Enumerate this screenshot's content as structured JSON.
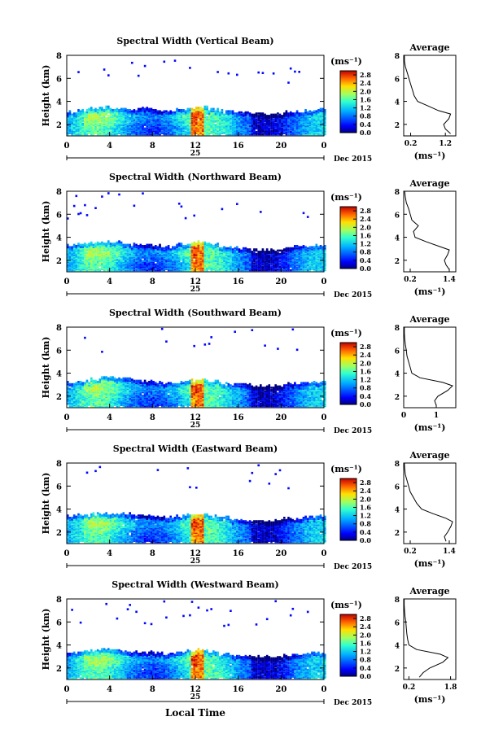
{
  "figure": {
    "xlabel": "Local Time",
    "month_label": "Dec 2015",
    "day_label": "25",
    "unit_label": "(ms⁻¹)"
  },
  "chart_data": [
    {
      "type": "heatmap",
      "title": "Spectral Width (Vertical Beam)",
      "ylabel": "Height (km)",
      "x_ticks": [
        "0",
        "4",
        "8",
        "12",
        "16",
        "20",
        "0"
      ],
      "y_ticks": [
        "2",
        "4",
        "6",
        "8"
      ],
      "xlim": [
        0,
        24
      ],
      "ylim": [
        1,
        8
      ],
      "colorbar_ticks": [
        "0.0",
        "0.4",
        "0.8",
        "1.2",
        "1.6",
        "2.0",
        "2.4",
        "2.8"
      ],
      "colorbar_range": [
        0,
        3.0
      ],
      "echo_top_km": [
        3.0,
        3.2,
        3.3,
        3.4,
        3.3,
        3.2,
        3.2,
        3.3,
        3.1,
        3.0,
        3.2,
        3.3,
        3.4,
        3.2,
        3.1,
        3.0,
        2.9,
        2.9,
        2.8,
        2.8,
        3.0,
        3.0,
        3.1,
        3.2
      ],
      "average_profile": {
        "title": "Average",
        "xlabel": "(ms⁻¹)",
        "x_ticks": [
          "0.2",
          "1.2"
        ],
        "xlim": [
          0,
          1.5
        ],
        "y_ticks": [
          "2",
          "4",
          "6",
          "8"
        ],
        "ylim": [
          1,
          8
        ],
        "height_km": [
          1.2,
          1.6,
          2.0,
          2.5,
          2.9,
          3.2,
          3.6,
          4.0,
          4.5,
          5.0,
          5.5,
          6.0,
          6.5,
          7.0,
          7.5,
          8.0
        ],
        "width_ms": [
          1.35,
          1.2,
          1.15,
          1.3,
          1.35,
          1.0,
          0.7,
          0.4,
          0.3,
          0.25,
          0.2,
          0.15,
          0.1,
          0.05,
          0.02,
          0.02
        ]
      }
    },
    {
      "type": "heatmap",
      "title": "Spectral Width (Northward Beam)",
      "ylabel": "Height (km)",
      "x_ticks": [
        "0",
        "4",
        "8",
        "12",
        "16",
        "20",
        "0"
      ],
      "y_ticks": [
        "2",
        "4",
        "6",
        "8"
      ],
      "xlim": [
        0,
        24
      ],
      "ylim": [
        1,
        8
      ],
      "colorbar_ticks": [
        "0.0",
        "0.4",
        "0.8",
        "1.2",
        "1.6",
        "2.0",
        "2.4",
        "2.8"
      ],
      "colorbar_range": [
        0,
        3.0
      ],
      "echo_top_km": [
        3.2,
        3.3,
        3.4,
        3.5,
        3.5,
        3.4,
        3.3,
        3.3,
        3.2,
        3.1,
        3.3,
        3.4,
        3.5,
        3.3,
        3.1,
        3.0,
        2.9,
        2.8,
        2.8,
        2.8,
        3.0,
        3.1,
        3.1,
        3.2
      ],
      "average_profile": {
        "title": "Average",
        "xlabel": "(ms⁻¹)",
        "x_ticks": [
          "0.2",
          "1.4"
        ],
        "xlim": [
          0,
          1.6
        ],
        "y_ticks": [
          "2",
          "4",
          "6",
          "8"
        ],
        "ylim": [
          1,
          8
        ],
        "height_km": [
          1.2,
          1.6,
          2.0,
          2.5,
          2.9,
          3.2,
          3.6,
          4.0,
          4.5,
          5.0,
          5.5,
          6.0,
          6.5,
          7.0,
          7.5,
          8.0
        ],
        "width_ms": [
          1.4,
          1.3,
          1.25,
          1.35,
          1.4,
          1.1,
          0.7,
          0.35,
          0.3,
          0.45,
          0.25,
          0.2,
          0.15,
          0.08,
          0.05,
          0.03
        ]
      }
    },
    {
      "type": "heatmap",
      "title": "Spectral Width (Southward Beam)",
      "ylabel": "Height (km)",
      "x_ticks": [
        "0",
        "4",
        "8",
        "12",
        "16",
        "20",
        "0"
      ],
      "y_ticks": [
        "2",
        "4",
        "6",
        "8"
      ],
      "xlim": [
        0,
        24
      ],
      "ylim": [
        1,
        8
      ],
      "colorbar_ticks": [
        "0.0",
        "0.4",
        "0.8",
        "1.2",
        "1.6",
        "2.0",
        "2.4",
        "2.8"
      ],
      "colorbar_range": [
        0,
        3.0
      ],
      "echo_top_km": [
        3.1,
        3.2,
        3.4,
        3.5,
        3.5,
        3.4,
        3.3,
        3.2,
        3.1,
        3.0,
        3.1,
        3.3,
        3.4,
        3.2,
        3.0,
        2.9,
        2.9,
        2.8,
        2.8,
        2.8,
        3.0,
        3.0,
        3.1,
        3.1
      ],
      "average_profile": {
        "title": "Average",
        "xlabel": "(ms⁻¹)",
        "x_ticks": [
          "0",
          "1"
        ],
        "xlim": [
          0,
          1.6
        ],
        "y_ticks": [
          "2",
          "4",
          "6",
          "8"
        ],
        "ylim": [
          1,
          8
        ],
        "height_km": [
          1.2,
          1.6,
          2.0,
          2.5,
          2.9,
          3.2,
          3.6,
          4.0,
          4.5,
          5.0,
          5.5,
          6.0,
          6.5,
          7.0,
          7.5,
          8.0
        ],
        "width_ms": [
          1.0,
          0.95,
          1.05,
          1.35,
          1.5,
          1.2,
          0.5,
          0.25,
          0.2,
          0.15,
          0.1,
          0.08,
          0.05,
          0.03,
          0.02,
          0.02
        ]
      }
    },
    {
      "type": "heatmap",
      "title": "Spectral Width (Eastward Beam)",
      "ylabel": "Height (km)",
      "x_ticks": [
        "0",
        "4",
        "8",
        "12",
        "16",
        "20",
        "0"
      ],
      "y_ticks": [
        "2",
        "4",
        "6",
        "8"
      ],
      "xlim": [
        0,
        24
      ],
      "ylim": [
        1,
        8
      ],
      "colorbar_ticks": [
        "0.0",
        "0.4",
        "0.8",
        "1.2",
        "1.6",
        "2.0",
        "2.4",
        "2.8"
      ],
      "colorbar_range": [
        0,
        3.0
      ],
      "echo_top_km": [
        3.3,
        3.4,
        3.5,
        3.5,
        3.5,
        3.5,
        3.4,
        3.3,
        3.3,
        3.2,
        3.3,
        3.5,
        3.5,
        3.3,
        3.2,
        3.0,
        3.0,
        2.9,
        2.9,
        2.9,
        3.1,
        3.1,
        3.2,
        3.3
      ],
      "average_profile": {
        "title": "Average",
        "xlabel": "(ms⁻¹)",
        "x_ticks": [
          "0.2",
          "1.4"
        ],
        "xlim": [
          0,
          1.6
        ],
        "y_ticks": [
          "2",
          "4",
          "6",
          "8"
        ],
        "ylim": [
          1,
          8
        ],
        "height_km": [
          1.2,
          1.6,
          2.0,
          2.5,
          2.9,
          3.2,
          3.6,
          4.0,
          4.5,
          5.0,
          5.5,
          6.0,
          6.5,
          7.0,
          7.5,
          8.0
        ],
        "width_ms": [
          1.3,
          1.25,
          1.35,
          1.45,
          1.5,
          1.3,
          0.9,
          0.55,
          0.4,
          0.3,
          0.2,
          0.15,
          0.1,
          0.05,
          0.03,
          0.02
        ]
      }
    },
    {
      "type": "heatmap",
      "title": "Spectral Width (Westward Beam)",
      "ylabel": "Height (km)",
      "x_ticks": [
        "0",
        "4",
        "8",
        "12",
        "16",
        "20",
        "0"
      ],
      "y_ticks": [
        "2",
        "4",
        "6",
        "8"
      ],
      "xlim": [
        0,
        24
      ],
      "ylim": [
        1,
        8
      ],
      "colorbar_ticks": [
        "0.0",
        "0.4",
        "0.8",
        "1.2",
        "1.6",
        "2.0",
        "2.4",
        "2.8"
      ],
      "colorbar_range": [
        0,
        3.0
      ],
      "echo_top_km": [
        3.2,
        3.3,
        3.4,
        3.5,
        3.5,
        3.4,
        3.3,
        3.3,
        3.2,
        3.1,
        3.2,
        3.4,
        3.5,
        3.3,
        3.1,
        3.0,
        2.9,
        2.9,
        2.9,
        2.9,
        3.0,
        3.1,
        3.2,
        3.2
      ],
      "average_profile": {
        "title": "Average",
        "xlabel": "(ms⁻¹)",
        "x_ticks": [
          "0.2",
          "1.8"
        ],
        "xlim": [
          0,
          2.0
        ],
        "y_ticks": [
          "2",
          "4",
          "6",
          "8"
        ],
        "ylim": [
          1,
          8
        ],
        "height_km": [
          1.2,
          1.6,
          2.0,
          2.5,
          2.9,
          3.2,
          3.6,
          4.0,
          4.5,
          5.0,
          5.5,
          6.0,
          6.5,
          7.0,
          7.5,
          8.0
        ],
        "width_ms": [
          0.6,
          0.75,
          1.0,
          1.5,
          1.7,
          1.4,
          0.5,
          0.2,
          0.15,
          0.12,
          0.1,
          0.08,
          0.05,
          0.03,
          0.02,
          0.02
        ]
      }
    }
  ]
}
